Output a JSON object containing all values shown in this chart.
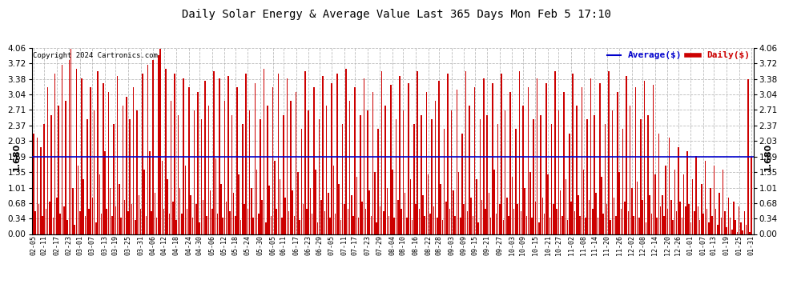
{
  "title": "Daily Solar Energy & Average Value Last 365 Days Mon Feb 5 17:10",
  "copyright": "Copyright 2024 Cartronics.com",
  "average_label": "Average($)",
  "daily_label": "Daily($)",
  "average_value": 1.68,
  "ylim": [
    0.0,
    4.06
  ],
  "yticks": [
    0.0,
    0.34,
    0.68,
    1.01,
    1.35,
    1.69,
    2.03,
    2.37,
    2.71,
    3.04,
    3.38,
    3.72,
    4.06
  ],
  "bar_color": "#cc0000",
  "avg_line_color": "#0000cc",
  "background_color": "#ffffff",
  "grid_color": "#aaaaaa",
  "title_color": "#000000",
  "copyright_color": "#000000",
  "x_labels": [
    "02-05",
    "02-11",
    "02-17",
    "02-23",
    "03-01",
    "03-07",
    "03-13",
    "03-19",
    "03-25",
    "03-31",
    "04-06",
    "04-12",
    "04-18",
    "04-24",
    "04-30",
    "05-06",
    "05-12",
    "05-18",
    "05-24",
    "05-30",
    "06-05",
    "06-11",
    "06-17",
    "06-23",
    "06-29",
    "07-05",
    "07-11",
    "07-17",
    "07-23",
    "07-29",
    "08-04",
    "08-10",
    "08-16",
    "08-22",
    "08-28",
    "09-03",
    "09-09",
    "09-15",
    "09-21",
    "09-27",
    "10-03",
    "10-09",
    "10-15",
    "10-21",
    "10-27",
    "11-02",
    "11-08",
    "11-14",
    "11-20",
    "11-26",
    "12-02",
    "12-08",
    "12-14",
    "12-20",
    "12-26",
    "01-01",
    "01-07",
    "01-13",
    "01-19",
    "01-25",
    "01-31"
  ],
  "daily_values": [
    2.2,
    0.5,
    2.1,
    0.65,
    1.9,
    0.4,
    2.4,
    0.55,
    3.2,
    0.7,
    2.6,
    0.35,
    3.5,
    0.8,
    2.8,
    0.45,
    3.7,
    0.6,
    2.9,
    0.3,
    3.8,
    4.05,
    1.0,
    0.2,
    3.6,
    1.5,
    0.5,
    3.4,
    1.2,
    0.4,
    2.5,
    0.55,
    3.2,
    0.8,
    2.7,
    0.25,
    3.55,
    1.3,
    0.45,
    3.3,
    1.8,
    0.55,
    3.1,
    1.0,
    0.4,
    2.4,
    0.6,
    3.45,
    1.1,
    0.35,
    2.8,
    0.75,
    3.0,
    0.5,
    2.5,
    0.65,
    3.2,
    0.3,
    2.7,
    0.85,
    0.55,
    3.5,
    1.4,
    0.4,
    3.7,
    1.8,
    0.5,
    3.8,
    0.9,
    0.35,
    3.9,
    4.05,
    1.6,
    0.55,
    3.6,
    1.2,
    0.45,
    2.9,
    0.7,
    3.5,
    0.3,
    2.6,
    1.0,
    0.45,
    3.4,
    1.5,
    0.55,
    3.2,
    0.85,
    0.35,
    2.7,
    0.65,
    3.1,
    0.25,
    2.5,
    0.75,
    3.35,
    0.4,
    2.8,
    0.95,
    0.55,
    3.55,
    1.65,
    0.45,
    3.4,
    1.1,
    0.35,
    2.9,
    0.7,
    3.45,
    0.5,
    2.6,
    0.9,
    0.4,
    3.2,
    1.3,
    0.3,
    2.4,
    0.65,
    3.5,
    0.55,
    2.7,
    1.0,
    0.35,
    3.3,
    1.4,
    0.45,
    2.5,
    0.75,
    3.6,
    0.25,
    2.8,
    1.05,
    0.4,
    3.2,
    1.6,
    0.55,
    3.5,
    1.2,
    0.35,
    2.6,
    0.8,
    3.4,
    0.5,
    2.9,
    0.95,
    0.4,
    3.1,
    1.35,
    0.3,
    2.3,
    0.65,
    3.55,
    0.55,
    2.7,
    1.0,
    0.45,
    3.2,
    1.4,
    0.25,
    2.5,
    0.75,
    3.45,
    0.5,
    2.8,
    0.9,
    0.35,
    3.3,
    1.5,
    0.45,
    3.5,
    1.1,
    0.3,
    2.4,
    0.65,
    3.6,
    0.55,
    2.9,
    0.85,
    0.4,
    3.2,
    1.25,
    0.35,
    2.6,
    0.7,
    3.4,
    0.55,
    2.7,
    0.95,
    0.4,
    3.1,
    1.35,
    0.25,
    2.3,
    0.6,
    3.55,
    0.5,
    2.8,
    1.0,
    0.4,
    3.25,
    1.4,
    0.35,
    2.5,
    0.75,
    3.45,
    0.55,
    2.7,
    0.9,
    0.35,
    3.3,
    1.2,
    0.3,
    2.4,
    0.65,
    3.55,
    0.55,
    2.6,
    0.85,
    0.4,
    3.1,
    1.3,
    0.45,
    2.5,
    0.6,
    2.9,
    0.35,
    3.35,
    1.1,
    0.3,
    2.3,
    0.7,
    3.5,
    0.55,
    2.7,
    0.95,
    0.4,
    3.15,
    1.35,
    0.35,
    2.2,
    0.65,
    3.55,
    0.5,
    2.8,
    0.8,
    0.4,
    3.2,
    1.2,
    0.25,
    2.5,
    0.75,
    3.4,
    0.55,
    2.6,
    0.9,
    0.35,
    3.3,
    1.4,
    0.45,
    2.4,
    0.65,
    3.5,
    0.3,
    2.7,
    0.8,
    0.4,
    3.1,
    1.25,
    0.55,
    2.3,
    0.65,
    3.55,
    0.5,
    2.8,
    1.0,
    0.4,
    3.2,
    1.35,
    0.35,
    2.5,
    0.7,
    3.4,
    0.25,
    2.6,
    0.8,
    0.45,
    3.3,
    1.3,
    0.35,
    2.4,
    0.65,
    3.55,
    0.55,
    2.7,
    0.95,
    0.4,
    3.1,
    1.2,
    0.3,
    2.2,
    0.7,
    3.5,
    0.5,
    2.8,
    0.85,
    0.4,
    3.2,
    1.4,
    0.35,
    2.5,
    0.75,
    3.4,
    0.55,
    2.6,
    0.9,
    0.35,
    3.3,
    1.25,
    0.45,
    2.4,
    0.65,
    3.55,
    0.3,
    2.7,
    0.8,
    0.4,
    3.1,
    1.35,
    0.55,
    2.3,
    0.7,
    3.45,
    0.5,
    2.8,
    1.0,
    0.4,
    3.2,
    1.15,
    0.35,
    2.5,
    0.75,
    3.35,
    0.25,
    2.6,
    0.85,
    0.45,
    3.25,
    1.3,
    0.35,
    2.2,
    0.6,
    0.85,
    0.4,
    1.5,
    0.55,
    2.1,
    0.75,
    0.3,
    1.4,
    0.5,
    1.9,
    0.7,
    0.35,
    1.3,
    0.6,
    1.8,
    0.65,
    0.25,
    1.2,
    0.5,
    1.7,
    0.6,
    0.3,
    1.1,
    0.45,
    1.6,
    0.55,
    0.25,
    1.0,
    0.4,
    1.5,
    0.55,
    0.2,
    0.9,
    0.35,
    1.4,
    0.5,
    0.15,
    0.8,
    0.35,
    0.1,
    0.7,
    0.3,
    0.05,
    0.6,
    0.25,
    0.08,
    0.5,
    0.2,
    3.38,
    0.05,
    1.68
  ]
}
